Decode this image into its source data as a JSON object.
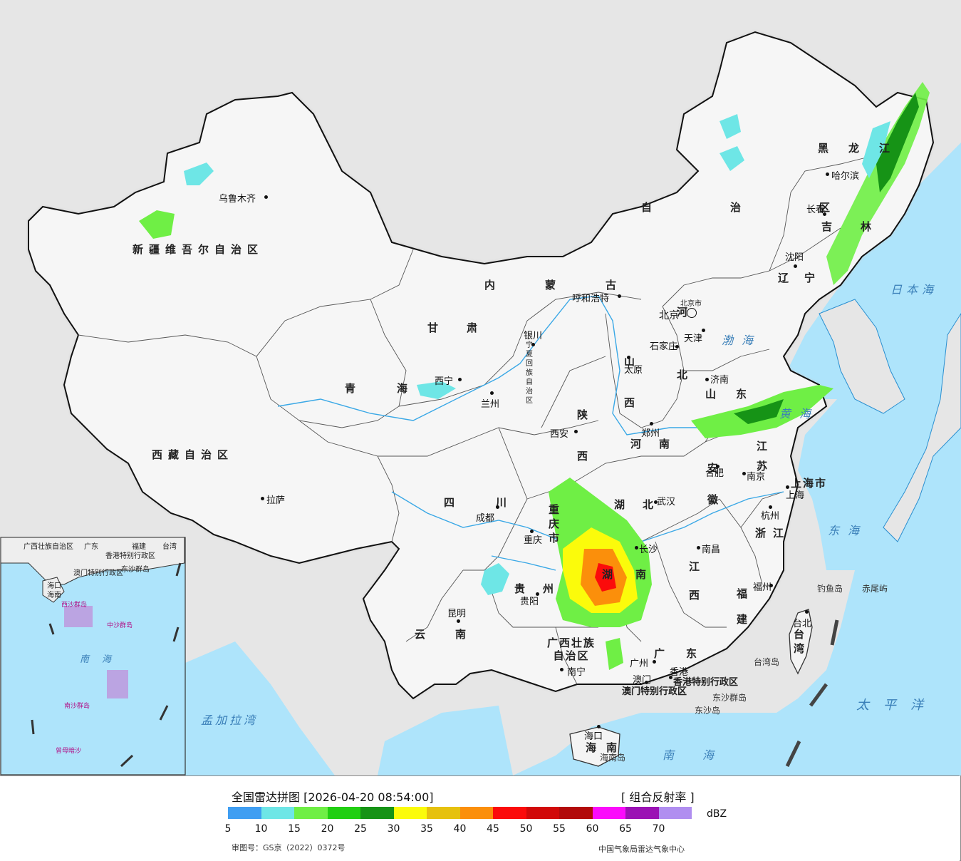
{
  "map": {
    "provinces": [
      {
        "id": "xinjiang",
        "name": "新疆维吾尔自治区"
      },
      {
        "id": "xizang",
        "name": "西藏自治区"
      },
      {
        "id": "qinghai",
        "name": "青海"
      },
      {
        "id": "gansu",
        "name": "甘肃"
      },
      {
        "id": "neimenggu",
        "name": "内蒙古"
      },
      {
        "id": "neimenggu2",
        "name": "自治区"
      },
      {
        "id": "heilongjiang",
        "name": "黑龙江"
      },
      {
        "id": "jilin",
        "name": "吉林"
      },
      {
        "id": "liaoning",
        "name": "辽宁"
      },
      {
        "id": "hebei",
        "name": "河北"
      },
      {
        "id": "shanxi",
        "name": "山西"
      },
      {
        "id": "shandong",
        "name": "山东"
      },
      {
        "id": "henan",
        "name": "河南"
      },
      {
        "id": "shaanxi",
        "name": "陕西"
      },
      {
        "id": "ningxia",
        "name": "宁夏回族自治区"
      },
      {
        "id": "sichuan",
        "name": "四川"
      },
      {
        "id": "chongqing",
        "name": "重庆市"
      },
      {
        "id": "hubei",
        "name": "湖北"
      },
      {
        "id": "hunan",
        "name": "湖南"
      },
      {
        "id": "anhui",
        "name": "安徽"
      },
      {
        "id": "jiangsu",
        "name": "江苏"
      },
      {
        "id": "shanghai",
        "name": "上海市"
      },
      {
        "id": "zhejiang",
        "name": "浙江"
      },
      {
        "id": "jiangxi",
        "name": "江西"
      },
      {
        "id": "fujian",
        "name": "福建"
      },
      {
        "id": "guizhou",
        "name": "贵州"
      },
      {
        "id": "yunnan",
        "name": "云南"
      },
      {
        "id": "guangxi",
        "name": "广西壮族自治区"
      },
      {
        "id": "guangdong",
        "name": "广东"
      },
      {
        "id": "hainan",
        "name": "海南"
      },
      {
        "id": "taiwan",
        "name": "台湾"
      },
      {
        "id": "hongkong",
        "name": "香港特别行政区"
      },
      {
        "id": "macau",
        "name": "澳门特别行政区"
      },
      {
        "id": "tianjin",
        "name": "天津"
      }
    ],
    "cities": [
      {
        "id": "urumqi",
        "name": "乌鲁木齐"
      },
      {
        "id": "lhasa",
        "name": "拉萨"
      },
      {
        "id": "xining",
        "name": "西宁"
      },
      {
        "id": "lanzhou",
        "name": "兰州"
      },
      {
        "id": "yinchuan",
        "name": "银川"
      },
      {
        "id": "hohhot",
        "name": "呼和浩特"
      },
      {
        "id": "harbin",
        "name": "哈尔滨"
      },
      {
        "id": "changchun",
        "name": "长春"
      },
      {
        "id": "shenyang",
        "name": "沈阳"
      },
      {
        "id": "beijing",
        "name": "北京"
      },
      {
        "id": "beijingshi",
        "name": "北京市"
      },
      {
        "id": "tianjin",
        "name": "天津"
      },
      {
        "id": "shijiazhuang",
        "name": "石家庄"
      },
      {
        "id": "taiyuan",
        "name": "太原"
      },
      {
        "id": "jinan",
        "name": "济南"
      },
      {
        "id": "zhengzhou",
        "name": "郑州"
      },
      {
        "id": "xian",
        "name": "西安"
      },
      {
        "id": "chengdu",
        "name": "成都"
      },
      {
        "id": "chongqing",
        "name": "重庆"
      },
      {
        "id": "wuhan",
        "name": "武汉"
      },
      {
        "id": "hefei",
        "name": "合肥"
      },
      {
        "id": "nanjing",
        "name": "南京"
      },
      {
        "id": "shanghai",
        "name": "上海"
      },
      {
        "id": "hangzhou",
        "name": "杭州"
      },
      {
        "id": "nanchang",
        "name": "南昌"
      },
      {
        "id": "changsha",
        "name": "长沙"
      },
      {
        "id": "fuzhou",
        "name": "福州"
      },
      {
        "id": "guiyang",
        "name": "贵阳"
      },
      {
        "id": "kunming",
        "name": "昆明"
      },
      {
        "id": "nanning",
        "name": "南宁"
      },
      {
        "id": "guangzhou",
        "name": "广州"
      },
      {
        "id": "hongkong",
        "name": "香港"
      },
      {
        "id": "macau",
        "name": "澳门"
      },
      {
        "id": "haikou",
        "name": "海口"
      },
      {
        "id": "taipei",
        "name": "台北"
      }
    ],
    "seas": [
      {
        "id": "bohai",
        "name": "渤海"
      },
      {
        "id": "huanghai",
        "name": "黄海"
      },
      {
        "id": "donghai",
        "name": "东海"
      },
      {
        "id": "nanhai",
        "name": "南海"
      },
      {
        "id": "taipingyang",
        "name": "太平洋"
      },
      {
        "id": "ribenhai",
        "name": "日本海"
      },
      {
        "id": "mengjialawan",
        "name": "孟加拉湾"
      }
    ],
    "islands": [
      {
        "id": "diaoyudao",
        "name": "钓鱼岛"
      },
      {
        "id": "chiweiyu",
        "name": "赤尾屿"
      },
      {
        "id": "taiwandao",
        "name": "台湾岛"
      },
      {
        "id": "dongshaqundao",
        "name": "东沙群岛"
      },
      {
        "id": "dongshadao",
        "name": "东沙岛"
      },
      {
        "id": "hainandao",
        "name": "海南岛"
      }
    ],
    "inset": {
      "labels": [
        "广西壮族自治区",
        "广东",
        "福建",
        "台湾",
        "香港特别行政区",
        "澳门特别行政区",
        "东沙群岛",
        "海口",
        "海南",
        "西沙群岛",
        "中沙群岛",
        "南海",
        "南沙群岛",
        "曾母暗沙"
      ]
    }
  },
  "legend": {
    "title": "全国雷达拼图 [2026-04-20 08:54:00]",
    "mode": "[ 组合反射率 ]",
    "unit": "dBZ",
    "colors": [
      "#3f9ef2",
      "#6ee6e6",
      "#6fef45",
      "#21cf12",
      "#169316",
      "#fbfb0b",
      "#e6c10e",
      "#fb8f0b",
      "#fb0b0b",
      "#d10909",
      "#b20a0a",
      "#fb0bfb",
      "#9b12b4",
      "#b08ef0"
    ],
    "ticks": [
      "5",
      "10",
      "15",
      "20",
      "25",
      "30",
      "35",
      "40",
      "45",
      "50",
      "55",
      "60",
      "65",
      "70"
    ],
    "review_number": "审图号：GS京（2022）0372号",
    "center": "中国气象局雷达气象中心"
  }
}
